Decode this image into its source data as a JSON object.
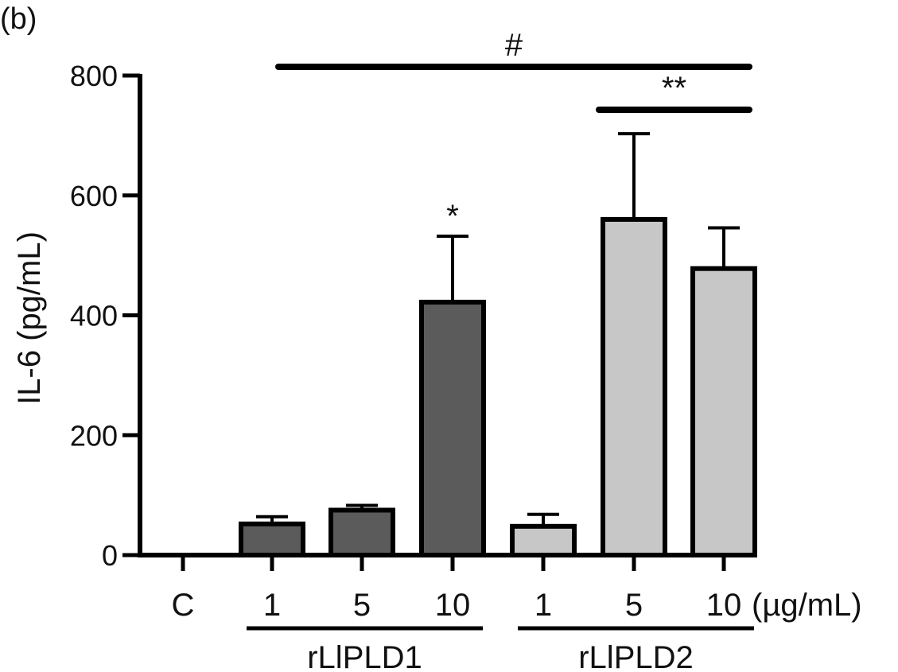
{
  "panel_label": "(b)",
  "colors": {
    "rLlPLD1": "#5b5b5b",
    "rLlPLD2": "#c7c7c7",
    "axis": "#000000"
  },
  "chart_data": {
    "type": "bar",
    "ylabel": "IL-6 (pg/mL)",
    "ylim": [
      0,
      800
    ],
    "yticks": [
      0,
      200,
      400,
      600,
      800
    ],
    "unit_label": "(µg/mL)",
    "categories": [
      "C",
      "1",
      "5",
      "10",
      "1",
      "5",
      "10"
    ],
    "groups": [
      "control",
      "rLlPLD1",
      "rLlPLD1",
      "rLlPLD1",
      "rLlPLD2",
      "rLlPLD2",
      "rLlPLD2"
    ],
    "values": [
      0,
      52,
      75,
      422,
      48,
      560,
      478
    ],
    "errors": [
      0,
      12,
      8,
      110,
      20,
      143,
      68
    ],
    "group_labels": [
      {
        "label": "rLlPLD1",
        "from": 1,
        "to": 3
      },
      {
        "label": "rLlPLD2",
        "from": 4,
        "to": 6
      }
    ],
    "annotations": [
      {
        "text": "*",
        "index": 3
      }
    ],
    "brackets": [
      {
        "text": "#",
        "from": 1,
        "to": 6,
        "level": 1
      },
      {
        "text": "**",
        "from": 5,
        "to": 6,
        "level": 0
      }
    ],
    "grid": false
  }
}
